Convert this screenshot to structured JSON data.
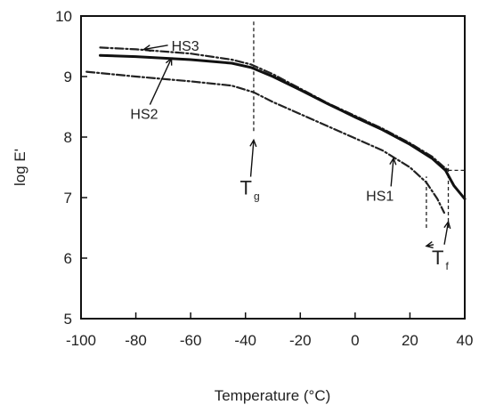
{
  "chart_data": {
    "type": "line",
    "xlabel": "Temperature (°C)",
    "ylabel": "log E'",
    "xlim": [
      -100,
      40
    ],
    "ylim": [
      5,
      10
    ],
    "xticks": [
      -100,
      -80,
      -60,
      -40,
      -20,
      0,
      20,
      40
    ],
    "yticks": [
      5,
      6,
      7,
      8,
      9,
      10
    ],
    "xtick_labels": [
      "-100",
      "-80",
      "-60",
      "-40",
      "-20",
      "0",
      "20",
      "40"
    ],
    "ytick_labels": [
      "5",
      "6",
      "7",
      "8",
      "9",
      "10"
    ],
    "grid": false,
    "series": [
      {
        "name": "HS3",
        "style": "dash-dot",
        "color": "#222222",
        "x": [
          -93,
          -80,
          -60,
          -45,
          -38,
          -30,
          -20,
          -10,
          0,
          10,
          20,
          28,
          32,
          34
        ],
        "y": [
          9.48,
          9.45,
          9.38,
          9.28,
          9.2,
          9.04,
          8.8,
          8.56,
          8.35,
          8.14,
          7.9,
          7.68,
          7.52,
          7.45
        ]
      },
      {
        "name": "HS2",
        "style": "solid",
        "color": "#111111",
        "x": [
          -93,
          -80,
          -60,
          -45,
          -38,
          -30,
          -20,
          -10,
          0,
          10,
          20,
          28,
          33,
          36,
          40
        ],
        "y": [
          9.35,
          9.33,
          9.28,
          9.22,
          9.15,
          9.0,
          8.78,
          8.55,
          8.33,
          8.12,
          7.88,
          7.65,
          7.45,
          7.2,
          6.98
        ]
      },
      {
        "name": "HS1",
        "style": "dash-dot",
        "color": "#222222",
        "x": [
          -98,
          -80,
          -60,
          -45,
          -37,
          -30,
          -20,
          -10,
          0,
          10,
          20,
          26,
          30,
          32.5
        ],
        "y": [
          9.08,
          9.0,
          8.92,
          8.85,
          8.74,
          8.58,
          8.38,
          8.18,
          7.98,
          7.78,
          7.5,
          7.25,
          6.98,
          6.75
        ]
      }
    ],
    "reference_lines": [
      {
        "label": "Tg",
        "x": -37,
        "y_from": 8.1,
        "y_to": 9.95
      },
      {
        "label": "Tf",
        "x": 26,
        "y_from": 6.5,
        "y_to": 7.35
      },
      {
        "label": "Tf",
        "x": 34,
        "y_from": 6.5,
        "y_to": 7.55
      }
    ],
    "annotations": [
      {
        "text": "HS3",
        "x": -67,
        "y": 9.43,
        "arrow_to": [
          -77,
          9.45
        ]
      },
      {
        "text": "HS2",
        "x": -82,
        "y": 8.3,
        "arrow_to": [
          -67,
          9.3
        ]
      },
      {
        "text": "Tg",
        "x": -42,
        "y": 7.05,
        "arrow_to": [
          -37,
          7.95
        ]
      },
      {
        "text": "HS1",
        "x": 4,
        "y": 6.95,
        "arrow_to": [
          14,
          7.65
        ]
      },
      {
        "text": "Tf",
        "x": 28,
        "y": 5.9,
        "arrow_to": [
          [
            26,
            6.2
          ],
          [
            34,
            6.6
          ]
        ]
      }
    ]
  }
}
